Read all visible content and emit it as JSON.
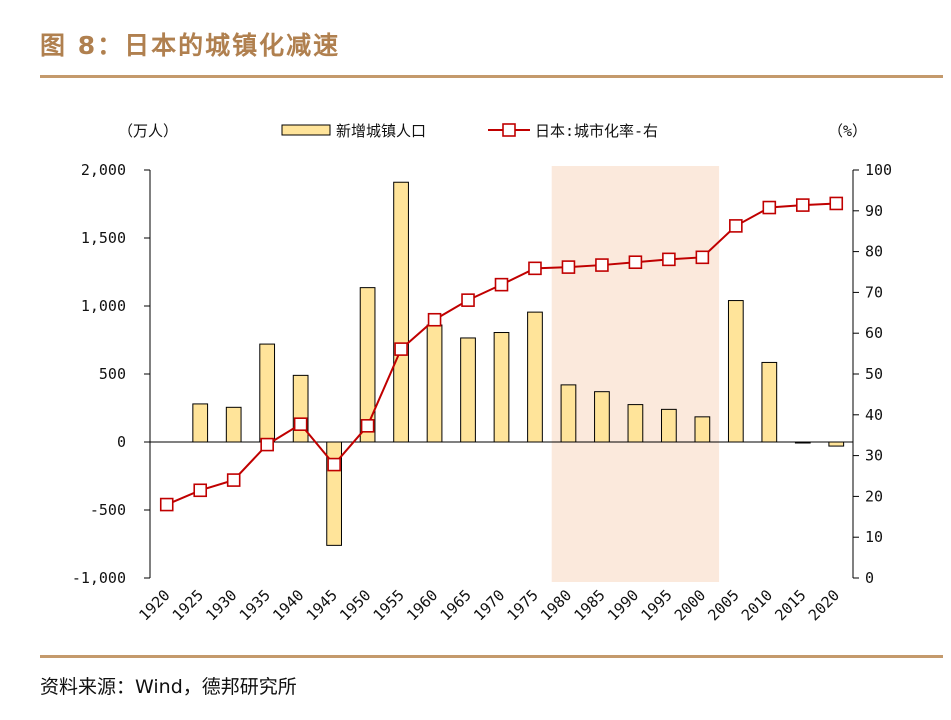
{
  "figure": {
    "title": "图 8：日本的城镇化减速",
    "source": "资料来源：Wind，德邦研究所"
  },
  "chart_data": {
    "type": "bar",
    "categories": [
      "1920",
      "1925",
      "1930",
      "1935",
      "1940",
      "1945",
      "1950",
      "1955",
      "1960",
      "1965",
      "1970",
      "1975",
      "1980",
      "1985",
      "1990",
      "1995",
      "2000",
      "2005",
      "2010",
      "2015",
      "2020"
    ],
    "series": [
      {
        "name": "新增城镇人口",
        "type": "bar",
        "axis": "left",
        "color": "#ffe49a",
        "values": [
          null,
          280,
          255,
          720,
          490,
          -760,
          1135,
          1910,
          860,
          765,
          805,
          955,
          420,
          370,
          275,
          240,
          185,
          1040,
          585,
          -5,
          -30
        ]
      },
      {
        "name": "日本:城市化率-右",
        "type": "line",
        "axis": "right",
        "color": "#c00000",
        "values": [
          18,
          21.5,
          24,
          32.7,
          37.7,
          27.8,
          37.3,
          56.1,
          63.3,
          68.1,
          71.9,
          75.9,
          76.2,
          76.7,
          77.4,
          78.1,
          78.6,
          86.3,
          90.8,
          91.4,
          91.8
        ]
      }
    ],
    "left_axis": {
      "unit": "（万人）",
      "ylim": [
        -1000,
        2000
      ],
      "ticks": [
        -1000,
        -500,
        0,
        500,
        1000,
        1500,
        2000
      ],
      "tick_labels": [
        "-1,000",
        "-500",
        "0",
        "500",
        "1,000",
        "1,500",
        "2,000"
      ]
    },
    "right_axis": {
      "unit": "（%）",
      "ylim": [
        0,
        100
      ],
      "ticks": [
        0,
        10,
        20,
        30,
        40,
        50,
        60,
        70,
        80,
        90,
        100
      ],
      "tick_labels": [
        "0",
        "10",
        "20",
        "30",
        "40",
        "50",
        "60",
        "70",
        "80",
        "90",
        "100"
      ]
    },
    "highlight": {
      "from": "1980",
      "to": "2000",
      "color": "#fbe9dc"
    },
    "legend": {
      "placement": "top-center",
      "entries": [
        "新增城镇人口",
        "日本:城市化率-右"
      ]
    },
    "grid": false
  }
}
